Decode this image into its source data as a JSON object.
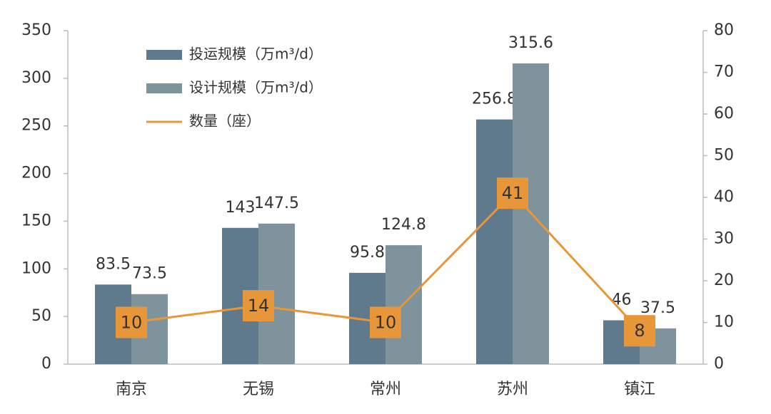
{
  "chart_data": {
    "type": "bar",
    "categories": [
      "南京",
      "无锡",
      "常州",
      "苏州",
      "镇江"
    ],
    "series": [
      {
        "name": "投运规模（万m³/d）",
        "color": "#5f7a8c",
        "values": [
          83.5,
          143,
          95.8,
          256.8,
          46
        ]
      },
      {
        "name": "设计规模（万m³/d）",
        "color": "#7f939c",
        "values": [
          73.5,
          147.5,
          124.8,
          315.6,
          37.5
        ]
      },
      {
        "name": "数量（座）",
        "color": "#e8963a",
        "type": "line",
        "axis": "y2",
        "values": [
          10,
          14,
          10,
          41,
          8
        ]
      }
    ],
    "ylim": [
      0,
      350
    ],
    "yticks": [
      0,
      50,
      100,
      150,
      200,
      250,
      300,
      350
    ],
    "y2lim": [
      0,
      80
    ],
    "y2ticks": [
      0,
      10,
      20,
      30,
      40,
      50,
      60,
      70,
      80
    ],
    "legend": "upper-left",
    "grid": false
  }
}
